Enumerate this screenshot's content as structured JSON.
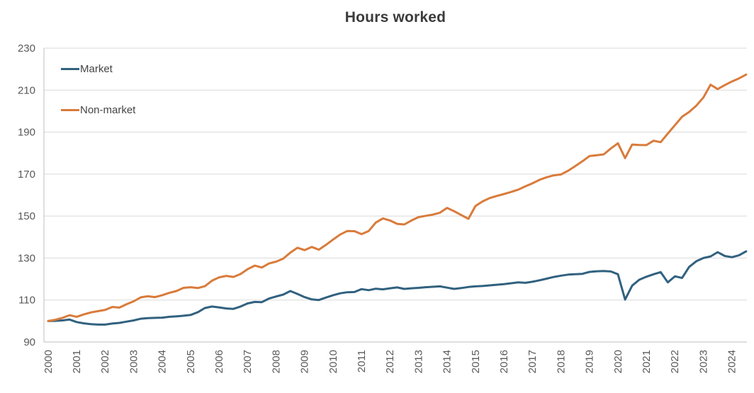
{
  "title": "Hours worked",
  "legend": {
    "items": [
      {
        "label": "Market",
        "color": "#31617f"
      },
      {
        "label": "Non-market",
        "color": "#d97b3b"
      }
    ]
  },
  "colors": {
    "market_line": "#31617f",
    "nonmarket_line": "#d97b3b",
    "gridline": "#d9d9d9",
    "axis_line": "#bfbfbf",
    "tick_label": "#595959",
    "title_text": "#3b3b3b",
    "background": "#ffffff"
  },
  "chart_data": {
    "type": "line",
    "title": "Hours worked",
    "xlabel": "",
    "ylabel": "",
    "ylim": [
      90,
      230
    ],
    "y_ticks": [
      90,
      110,
      130,
      150,
      170,
      190,
      210,
      230
    ],
    "x_tick_years": [
      2000,
      2001,
      2002,
      2003,
      2004,
      2005,
      2006,
      2007,
      2008,
      2009,
      2010,
      2011,
      2012,
      2013,
      2014,
      2015,
      2016,
      2017,
      2018,
      2019,
      2020,
      2021,
      2022,
      2023,
      2024
    ],
    "x_start_year": 2000,
    "x_step_years": 0.25,
    "frequency": "quarterly",
    "grid": true,
    "legend_position": "inside-top-left",
    "series": [
      {
        "name": "Market",
        "color": "#31617f",
        "values": [
          100.0,
          100.1,
          100.3,
          100.7,
          99.5,
          98.9,
          98.5,
          98.3,
          98.3,
          98.8,
          99.1,
          99.7,
          100.3,
          101.1,
          101.4,
          101.5,
          101.6,
          102.0,
          102.2,
          102.5,
          102.9,
          104.2,
          106.2,
          106.9,
          106.5,
          106.0,
          105.8,
          106.9,
          108.4,
          109.1,
          109.0,
          110.7,
          111.7,
          112.6,
          114.3,
          112.9,
          111.4,
          110.3,
          110.0,
          111.2,
          112.3,
          113.2,
          113.7,
          113.8,
          115.2,
          114.7,
          115.4,
          115.1,
          115.6,
          116.0,
          115.3,
          115.6,
          115.8,
          116.1,
          116.3,
          116.5,
          115.9,
          115.3,
          115.7,
          116.2,
          116.5,
          116.7,
          117.0,
          117.3,
          117.6,
          118.0,
          118.4,
          118.2,
          118.7,
          119.4,
          120.2,
          121.0,
          121.6,
          122.1,
          122.3,
          122.5,
          123.4,
          123.7,
          123.8,
          123.6,
          122.3,
          110.2,
          116.9,
          119.7,
          121.1,
          122.3,
          123.3,
          118.4,
          121.3,
          120.5,
          125.8,
          128.5,
          130.0,
          130.8,
          132.8,
          131.0,
          130.4,
          131.3,
          133.2
        ]
      },
      {
        "name": "Non-market",
        "color": "#d97b3b",
        "values": [
          100.0,
          100.6,
          101.5,
          102.8,
          102.0,
          103.2,
          104.1,
          104.7,
          105.3,
          106.7,
          106.4,
          108.0,
          109.4,
          111.3,
          111.8,
          111.4,
          112.3,
          113.4,
          114.3,
          115.8,
          116.1,
          115.7,
          116.6,
          119.2,
          120.8,
          121.5,
          121.0,
          122.4,
          124.7,
          126.4,
          125.5,
          127.4,
          128.3,
          129.7,
          132.6,
          134.9,
          133.8,
          135.3,
          134.0,
          136.3,
          138.8,
          141.2,
          142.9,
          142.8,
          141.4,
          142.9,
          146.9,
          148.9,
          147.9,
          146.3,
          146.0,
          147.9,
          149.5,
          150.1,
          150.7,
          151.6,
          153.9,
          152.3,
          150.5,
          148.7,
          154.8,
          157.0,
          158.6,
          159.6,
          160.5,
          161.5,
          162.6,
          164.2,
          165.6,
          167.3,
          168.5,
          169.4,
          169.8,
          171.6,
          173.8,
          176.1,
          178.6,
          179.0,
          179.4,
          182.2,
          184.7,
          177.6,
          184.1,
          183.9,
          183.8,
          185.9,
          185.2,
          189.3,
          193.3,
          197.3,
          199.6,
          202.6,
          206.5,
          212.6,
          210.5,
          212.4,
          214.1,
          215.6,
          217.4
        ]
      }
    ]
  }
}
